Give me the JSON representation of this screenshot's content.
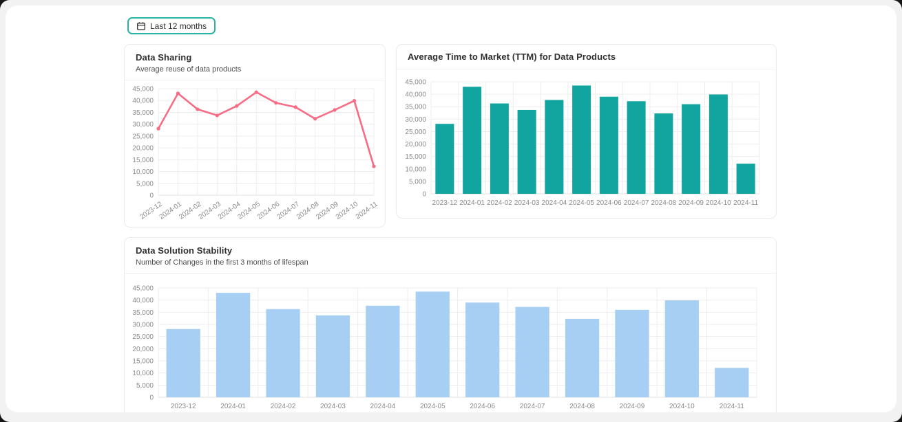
{
  "toolbar": {
    "range_button": {
      "label": "Last 12 months",
      "icon": "calendar-icon",
      "border_color": "#2ab2a5"
    }
  },
  "colors": {
    "panel_bg": "#ffffff",
    "window_bg": "#f2f2f3",
    "card_border": "#eaeaea",
    "grid": "#ededed",
    "axis_line": "#e2e2e2",
    "tick_text": "#8a8a8a"
  },
  "chart_data": [
    {
      "id": "data-sharing",
      "type": "line",
      "title": "Data Sharing",
      "subtitle": "Average reuse of data products",
      "categories": [
        "2023-12",
        "2024-01",
        "2024-02",
        "2024-03",
        "2024-04",
        "2024-05",
        "2024-06",
        "2024-07",
        "2024-08",
        "2024-09",
        "2024-10",
        "2024-11"
      ],
      "values": [
        28100,
        43000,
        36300,
        33700,
        37700,
        43500,
        39000,
        37200,
        32300,
        36000,
        39900,
        12200
      ],
      "color": "#f76c84",
      "ylim": [
        0,
        45000
      ],
      "yticks": [
        0,
        5000,
        10000,
        15000,
        20000,
        25000,
        30000,
        35000,
        40000,
        45000
      ],
      "grid": true,
      "x_label_rotation": -35,
      "legend": "none"
    },
    {
      "id": "time-to-market",
      "type": "bar",
      "title": "Average Time to Market (TTM) for Data Products",
      "subtitle": "",
      "categories": [
        "2023-12",
        "2024-01",
        "2024-02",
        "2024-03",
        "2024-04",
        "2024-05",
        "2024-06",
        "2024-07",
        "2024-08",
        "2024-09",
        "2024-10",
        "2024-11"
      ],
      "values": [
        28100,
        43000,
        36300,
        33700,
        37700,
        43500,
        39000,
        37200,
        32300,
        36000,
        39900,
        12100
      ],
      "color": "#12a5a0",
      "ylim": [
        0,
        45000
      ],
      "yticks": [
        0,
        5000,
        10000,
        15000,
        20000,
        25000,
        30000,
        35000,
        40000,
        45000
      ],
      "grid": true,
      "x_label_rotation": 0,
      "legend": "none"
    },
    {
      "id": "solution-stability",
      "type": "bar",
      "title": "Data Solution Stability",
      "subtitle": "Number of Changes in the first 3 months of lifespan",
      "categories": [
        "2023-12",
        "2024-01",
        "2024-02",
        "2024-03",
        "2024-04",
        "2024-05",
        "2024-06",
        "2024-07",
        "2024-08",
        "2024-09",
        "2024-10",
        "2024-11"
      ],
      "values": [
        28100,
        43000,
        36300,
        33700,
        37700,
        43500,
        39000,
        37200,
        32300,
        36000,
        39900,
        12100
      ],
      "color": "#a6cff3",
      "ylim": [
        0,
        45000
      ],
      "yticks": [
        0,
        5000,
        10000,
        15000,
        20000,
        25000,
        30000,
        35000,
        40000,
        45000
      ],
      "grid": true,
      "x_label_rotation": 0,
      "legend": "none"
    }
  ]
}
